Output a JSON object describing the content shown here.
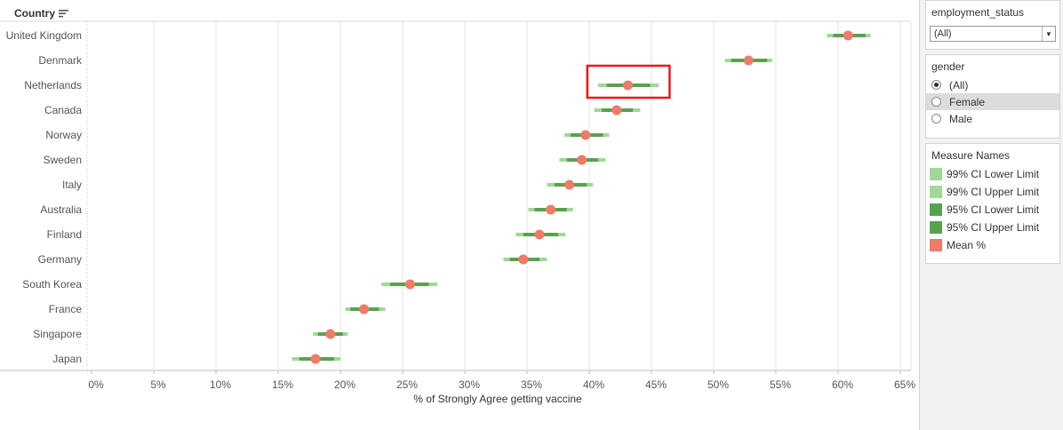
{
  "chart_data": {
    "type": "dot-interval",
    "row_header": "Country",
    "xlabel": "% of Strongly Agree getting vaccine",
    "xlim": [
      -0.4,
      65.5
    ],
    "xticks": [
      0,
      5,
      10,
      15,
      20,
      25,
      30,
      35,
      40,
      45,
      50,
      55,
      60,
      65
    ],
    "tick_suffix": "%",
    "gridlines": true,
    "categories": [
      "United Kingdom",
      "Denmark",
      "Netherlands",
      "Canada",
      "Norway",
      "Sweden",
      "Italy",
      "Australia",
      "Finland",
      "Germany",
      "South Korea",
      "France",
      "Singapore",
      "Japan"
    ],
    "series": [
      {
        "name": "99% CI Lower Limit",
        "values": [
          59.1,
          50.9,
          40.7,
          40.4,
          38.0,
          37.6,
          36.6,
          35.1,
          34.1,
          33.1,
          23.3,
          20.4,
          17.8,
          16.1
        ]
      },
      {
        "name": "99% CI Upper Limit",
        "values": [
          62.6,
          54.7,
          45.6,
          44.1,
          41.6,
          41.3,
          40.3,
          38.7,
          38.1,
          36.6,
          27.8,
          23.6,
          20.6,
          20.0
        ]
      },
      {
        "name": "95% CI Lower Limit",
        "values": [
          59.6,
          51.4,
          41.4,
          41.0,
          38.5,
          38.2,
          37.2,
          35.6,
          34.7,
          33.6,
          24.0,
          20.8,
          18.2,
          16.7
        ]
      },
      {
        "name": "95% CI Upper Limit",
        "values": [
          62.2,
          54.3,
          44.9,
          43.5,
          41.1,
          40.7,
          39.8,
          38.2,
          37.5,
          36.0,
          27.1,
          23.1,
          20.2,
          19.5
        ]
      },
      {
        "name": "Mean %",
        "values": [
          60.8,
          52.8,
          43.1,
          42.2,
          39.7,
          39.4,
          38.4,
          36.9,
          36.0,
          34.7,
          25.6,
          21.9,
          19.2,
          18.0
        ]
      }
    ],
    "highlight_category": "Netherlands",
    "colors": {
      "ci99": "#a0d898",
      "ci95": "#59a14f",
      "mean": "#ef7b68",
      "highlight": "#e8191c",
      "grid": "#e6e6e6"
    }
  },
  "filters": {
    "employment_status": {
      "title": "employment_status",
      "selected": "(All)"
    },
    "gender": {
      "title": "gender",
      "options": [
        {
          "label": "(All)",
          "selected": true
        },
        {
          "label": "Female",
          "selected": false
        },
        {
          "label": "Male",
          "selected": false
        }
      ]
    }
  },
  "legend": {
    "title": "Measure Names",
    "items": [
      {
        "label": "99% CI Lower Limit",
        "color": "#a0d898"
      },
      {
        "label": "99% CI Upper Limit",
        "color": "#a0d898"
      },
      {
        "label": "95% CI Lower Limit",
        "color": "#59a14f"
      },
      {
        "label": "95% CI Upper Limit",
        "color": "#59a14f"
      },
      {
        "label": "Mean %",
        "color": "#ef7b68"
      }
    ]
  }
}
